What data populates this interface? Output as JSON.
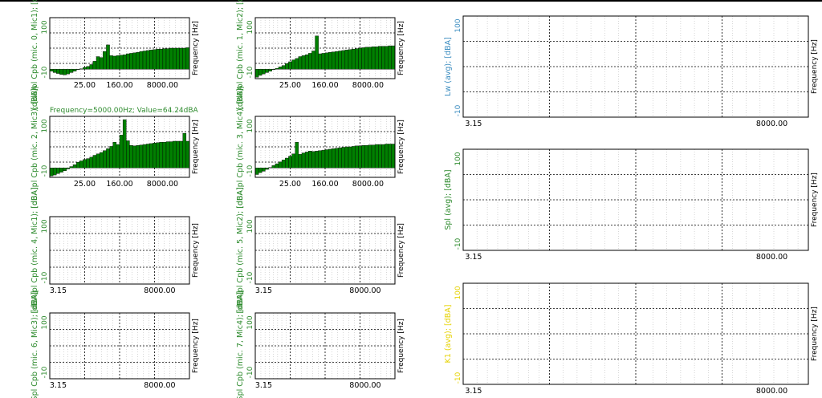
{
  "window": {
    "top_border": "#000000"
  },
  "cursor_readout": "Frequency=5000.00Hz; Value=64.24dBA",
  "colors": {
    "bar_fill": "#008000",
    "bar_stroke": "#000000",
    "grid": "#000000",
    "label_green": "#2e8b2e",
    "label_blue": "#3c8dc0",
    "label_yellow": "#e6d200",
    "tick_text": "#000000"
  },
  "chart_data": [
    {
      "id": "mic0",
      "type": "bar",
      "ylabel": "[dBA]pl Cpb (mic. 0, Mic1); [dBA",
      "xlabel": "Frequency [Hz]",
      "ytick_labels": [
        "100",
        "-10"
      ],
      "xtick_labels": [
        "25.00",
        "160.00",
        "8000.00"
      ],
      "ylim": [
        -30,
        100
      ],
      "xscale": "log",
      "values": [
        -14,
        -17,
        -19,
        -21,
        -22,
        -20,
        -17,
        -14,
        -11,
        -9,
        -6,
        -4,
        0,
        7,
        17,
        15,
        28,
        42,
        19,
        18,
        19,
        20,
        21,
        23,
        24,
        25,
        26,
        28,
        29,
        30,
        31,
        32,
        33,
        33,
        34,
        34,
        35,
        35,
        35,
        35,
        35,
        36
      ]
    },
    {
      "id": "mic1",
      "type": "bar",
      "ylabel": "[dBA]pl Cpb (mic. 1, Mic2); [dBA",
      "xlabel": "Frequency [Hz]",
      "ytick_labels": [
        "100",
        "-10"
      ],
      "xtick_labels": [
        "25.00",
        "160.00",
        "8000.00"
      ],
      "ylim": [
        -30,
        100
      ],
      "xscale": "log",
      "values": [
        -27,
        -23,
        -20,
        -17,
        -14,
        -11,
        -8,
        -5,
        -2,
        2,
        6,
        10,
        13,
        17,
        19,
        21,
        24,
        29,
        61,
        23,
        24,
        25,
        26,
        27,
        28,
        29,
        30,
        31,
        32,
        33,
        34,
        35,
        36,
        37,
        37,
        38,
        38,
        39,
        39,
        39,
        40,
        40
      ]
    },
    {
      "id": "mic2",
      "type": "bar",
      "ylabel": "[dBA]pl Cpb (mic. 2, Mic3); [dBA",
      "xlabel": "Frequency [Hz]",
      "ytick_labels": [
        "100",
        "-10"
      ],
      "xtick_labels": [
        "25.00",
        "160.00",
        "8000.00"
      ],
      "ylim": [
        -30,
        100
      ],
      "xscale": "log",
      "values": [
        -27,
        -25,
        -22,
        -19,
        -16,
        -12,
        -7,
        -3,
        2,
        5,
        8,
        10,
        13,
        17,
        20,
        23,
        27,
        31,
        36,
        45,
        40,
        60,
        93,
        48,
        38,
        37,
        38,
        39,
        40,
        41,
        42,
        43,
        44,
        45,
        45,
        46,
        46,
        47,
        47,
        47,
        64,
        47
      ]
    },
    {
      "id": "mic3",
      "type": "bar",
      "ylabel": "[dBA]pl Cpb (mic. 3, Mic4); [dBA",
      "xlabel": "Frequency [Hz]",
      "ytick_labels": [
        "100",
        "-10"
      ],
      "xtick_labels": [
        "25.00",
        "160.00",
        "8000.00"
      ],
      "ylim": [
        -30,
        100
      ],
      "xscale": "log",
      "values": [
        -24,
        -20,
        -17,
        -13,
        -9,
        -5,
        -1,
        3,
        7,
        11,
        15,
        20,
        45,
        19,
        22,
        24,
        26,
        25,
        26,
        27,
        28,
        29,
        30,
        31,
        32,
        33,
        34,
        35,
        35,
        36,
        37,
        37,
        38,
        38,
        39,
        39,
        40,
        40,
        40,
        41,
        41,
        41
      ]
    },
    {
      "id": "mic4",
      "type": "bar",
      "ylabel": "[dBA]pl Cpb (mic. 4, Mic1); [dBA]",
      "xlabel": "Frequency [Hz]",
      "ytick_labels": [
        "100",
        "-10"
      ],
      "xtick_labels": [
        "3.15",
        "8000.00"
      ],
      "values": []
    },
    {
      "id": "mic5",
      "type": "bar",
      "ylabel": "[dBA]pl Cpb (mic. 5, Mic2); [dBA]",
      "xlabel": "Frequency [Hz]",
      "ytick_labels": [
        "100",
        "-10"
      ],
      "xtick_labels": [
        "3.15",
        "8000.00"
      ],
      "values": []
    },
    {
      "id": "mic6",
      "type": "bar",
      "ylabel": "Spl Cpb (mic. 6, Mic3); [dBA]",
      "xlabel": "Frequency [Hz]",
      "ytick_labels": [
        "100",
        "-10"
      ],
      "xtick_labels": [
        "3.15",
        "8000.00"
      ],
      "values": []
    },
    {
      "id": "mic7",
      "type": "bar",
      "ylabel": "Spl Cpb (mic. 7, Mic4); [dBA]",
      "xlabel": "Frequency [Hz]",
      "ytick_labels": [
        "100",
        "-10"
      ],
      "xtick_labels": [
        "3.15",
        "8000.00"
      ],
      "values": []
    },
    {
      "id": "lw",
      "type": "bar",
      "ylabel": "Lw (avg); [dBA]",
      "xlabel": "Frequency [Hz]",
      "ytick_labels": [
        "100",
        "-10"
      ],
      "xtick_labels": [
        "3.15",
        "8000.00"
      ],
      "values": []
    },
    {
      "id": "spl",
      "type": "bar",
      "ylabel": "Spl (avg); [dBA]",
      "xlabel": "Frequency [Hz]",
      "ytick_labels": [
        "100",
        "-10"
      ],
      "xtick_labels": [
        "3.15",
        "8000.00"
      ],
      "values": []
    },
    {
      "id": "ki",
      "type": "bar",
      "ylabel": "K1 (avg); [dBA]",
      "xlabel": "Frequency [Hz]",
      "ytick_labels": [
        "100",
        "-10"
      ],
      "xtick_labels": [
        "3.15",
        "8000.00"
      ],
      "values": []
    }
  ]
}
